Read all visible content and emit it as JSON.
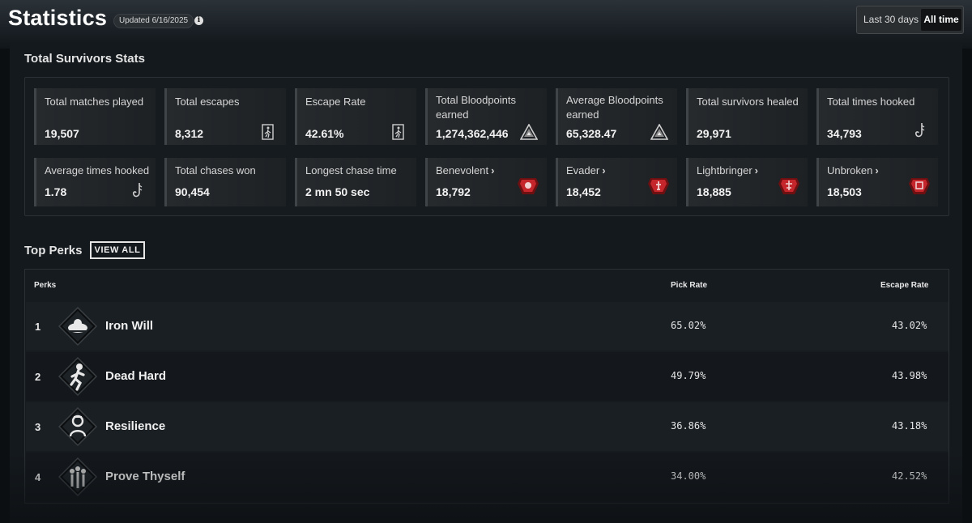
{
  "header": {
    "title": "Statistics",
    "updated": "Updated 6/16/2025",
    "range_options": [
      "Last 30 days",
      "All time"
    ],
    "selected_range": "All time"
  },
  "survivors": {
    "section_title": "Total Survivors Stats",
    "cards": [
      {
        "label": "Total matches played",
        "value": "19,507",
        "icon": "none"
      },
      {
        "label": "Total escapes",
        "value": "8,312",
        "icon": "exit-door-icon"
      },
      {
        "label": "Escape Rate",
        "value": "42.61%",
        "icon": "exit-door-icon"
      },
      {
        "label": "Total Bloodpoints earned",
        "value": "1,274,362,446",
        "icon": "bloodpoints-icon"
      },
      {
        "label": "Average Bloodpoints earned",
        "value": "65,328.47",
        "icon": "bloodpoints-icon"
      },
      {
        "label": "Total survivors healed",
        "value": "29,971",
        "icon": "none"
      },
      {
        "label": "Total times hooked",
        "value": "34,793",
        "icon": "hook-icon"
      },
      {
        "label": "Average times hooked",
        "value": "1.78",
        "icon": "hook-icon"
      },
      {
        "label": "Total chases won",
        "value": "90,454",
        "icon": "none"
      },
      {
        "label": "Longest chase time",
        "value": "2 mn 50 sec",
        "icon": "none"
      },
      {
        "label": "Benevolent",
        "value": "18,792",
        "icon": "emblem-icon",
        "link": true
      },
      {
        "label": "Evader",
        "value": "18,452",
        "icon": "emblem-icon",
        "link": true
      },
      {
        "label": "Lightbringer",
        "value": "18,885",
        "icon": "emblem-icon",
        "link": true
      },
      {
        "label": "Unbroken",
        "value": "18,503",
        "icon": "emblem-icon",
        "link": true
      }
    ],
    "colors": {
      "emblem": "#c4262b",
      "emblem_dark": "#6e0f12"
    }
  },
  "perks": {
    "section_title": "Top Perks",
    "view_all_label": "VIEW ALL",
    "columns": {
      "perk": "Perks",
      "pick_rate": "Pick Rate",
      "escape_rate": "Escape Rate"
    },
    "rows": [
      {
        "rank": "1",
        "name": "Iron Will",
        "pick_rate": "65.02%",
        "escape_rate": "43.02%",
        "icon": "iron-will-perk-icon"
      },
      {
        "rank": "2",
        "name": "Dead Hard",
        "pick_rate": "49.79%",
        "escape_rate": "43.98%",
        "icon": "dead-hard-perk-icon"
      },
      {
        "rank": "3",
        "name": "Resilience",
        "pick_rate": "36.86%",
        "escape_rate": "43.18%",
        "icon": "resilience-perk-icon"
      },
      {
        "rank": "4",
        "name": "Prove Thyself",
        "pick_rate": "34.00%",
        "escape_rate": "42.52%",
        "icon": "prove-thyself-perk-icon"
      }
    ]
  }
}
